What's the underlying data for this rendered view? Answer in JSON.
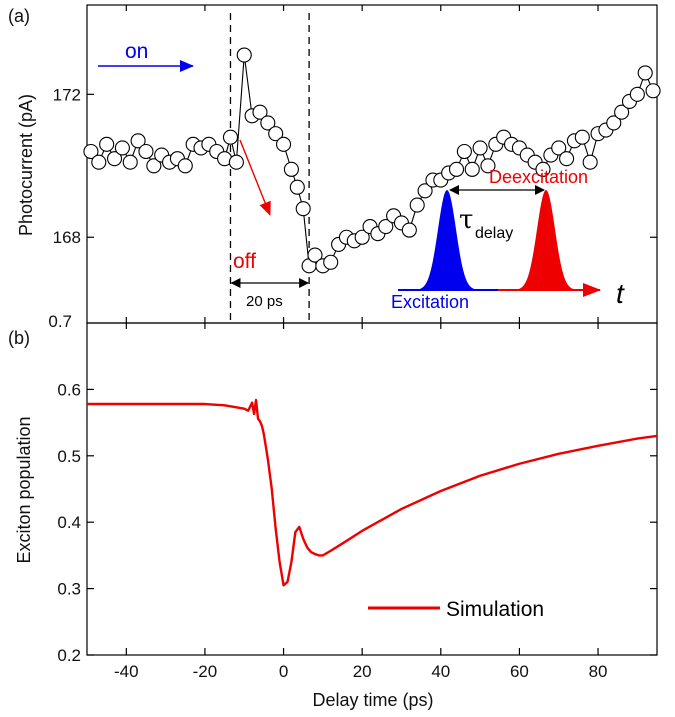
{
  "chart_data": [
    {
      "panel": "(a)",
      "type": "scatter",
      "ylabel": "Photocurrent (pA)",
      "xlim": [
        -50,
        95
      ],
      "ylim": [
        165.6,
        174.5
      ],
      "yticks": [
        "172",
        "168"
      ],
      "ytick_values": [
        172,
        168
      ],
      "bottom_tick_label": "0.7",
      "series": [
        {
          "x": [
            -49,
            -47,
            -45,
            -43,
            -41,
            -39,
            -37,
            -35,
            -33,
            -31,
            -29,
            -27,
            -25,
            -23,
            -21,
            -19,
            -17,
            -15,
            -13.5,
            -12,
            -10,
            -8,
            -6,
            -4,
            -2,
            0,
            2,
            3.5,
            5,
            6.5,
            8,
            10,
            12,
            14,
            16,
            18,
            20,
            22,
            24,
            26,
            28,
            30,
            32,
            34,
            36,
            38,
            40,
            42,
            44,
            46,
            48,
            50,
            52,
            54,
            56,
            58,
            60,
            62,
            64,
            66,
            68,
            70,
            72,
            74,
            76,
            78,
            80,
            82,
            84,
            86,
            88,
            90,
            92,
            94
          ],
          "y": [
            170.4,
            170.1,
            170.6,
            170.2,
            170.5,
            170.1,
            170.7,
            170.4,
            170.0,
            170.3,
            170.1,
            170.2,
            170.0,
            170.6,
            170.5,
            170.6,
            170.4,
            170.2,
            170.8,
            170.1,
            173.1,
            171.4,
            171.5,
            171.2,
            170.9,
            170.6,
            169.9,
            169.4,
            168.8,
            167.2,
            167.5,
            167.2,
            167.3,
            167.8,
            168.0,
            167.9,
            168.0,
            168.3,
            168.1,
            168.3,
            168.6,
            168.4,
            168.2,
            168.9,
            169.3,
            169.6,
            169.6,
            169.8,
            169.9,
            170.4,
            169.9,
            170.5,
            170.0,
            170.6,
            170.8,
            170.6,
            170.5,
            170.3,
            170.1,
            169.9,
            170.3,
            170.5,
            170.2,
            170.7,
            170.8,
            170.1,
            170.9,
            171.0,
            171.2,
            171.5,
            171.8,
            172.0,
            172.6,
            172.1
          ]
        }
      ],
      "annotations": {
        "on_label": "on",
        "off_label": "off",
        "interval_label": "20 ps",
        "interval_lines_x": [
          -13.5,
          6.5
        ],
        "pulse_delay_symbol": "τ",
        "pulse_delay_subscript": "delay",
        "excitation_label": "Excitation",
        "deexcitation_label": "Deexcitation",
        "time_axis_symbol": "t"
      },
      "colors": {
        "on": "#0000ee",
        "off": "#ee0000",
        "excitation": "#0000ee",
        "deexcitation": "#ee0000",
        "markers": "#000000"
      }
    },
    {
      "panel": "(b)",
      "type": "line",
      "xlabel": "Delay time (ps)",
      "ylabel": "Exciton population",
      "xlim": [
        -50,
        95
      ],
      "ylim": [
        0.2,
        0.7
      ],
      "xticks": [
        -40,
        -20,
        0,
        20,
        40,
        60,
        80
      ],
      "xtick_labels": [
        "-40",
        "-20",
        "0",
        "20",
        "40",
        "60",
        "80"
      ],
      "yticks": [
        0.2,
        0.3,
        0.4,
        0.5,
        0.6
      ],
      "ytick_labels": [
        "0.2",
        "0.3",
        "0.4",
        "0.5",
        "0.6"
      ],
      "legend": "bottom-center",
      "series": [
        {
          "name": "Simulation",
          "color": "#ee0000",
          "x": [
            -50,
            -30,
            -20,
            -15,
            -12,
            -10,
            -9,
            -8,
            -7.5,
            -7,
            -6.5,
            -6,
            -5.5,
            -5,
            -4,
            -3,
            -2,
            -1,
            0,
            1,
            2,
            3,
            4,
            5,
            6,
            7,
            8,
            9,
            10,
            12,
            15,
            20,
            30,
            40,
            50,
            60,
            70,
            80,
            90,
            95
          ],
          "y": [
            0.578,
            0.578,
            0.578,
            0.576,
            0.573,
            0.571,
            0.568,
            0.58,
            0.563,
            0.584,
            0.556,
            0.552,
            0.545,
            0.532,
            0.495,
            0.45,
            0.39,
            0.34,
            0.305,
            0.31,
            0.34,
            0.385,
            0.393,
            0.375,
            0.362,
            0.355,
            0.352,
            0.35,
            0.35,
            0.357,
            0.368,
            0.387,
            0.42,
            0.447,
            0.47,
            0.488,
            0.503,
            0.515,
            0.526,
            0.53
          ]
        }
      ]
    }
  ]
}
